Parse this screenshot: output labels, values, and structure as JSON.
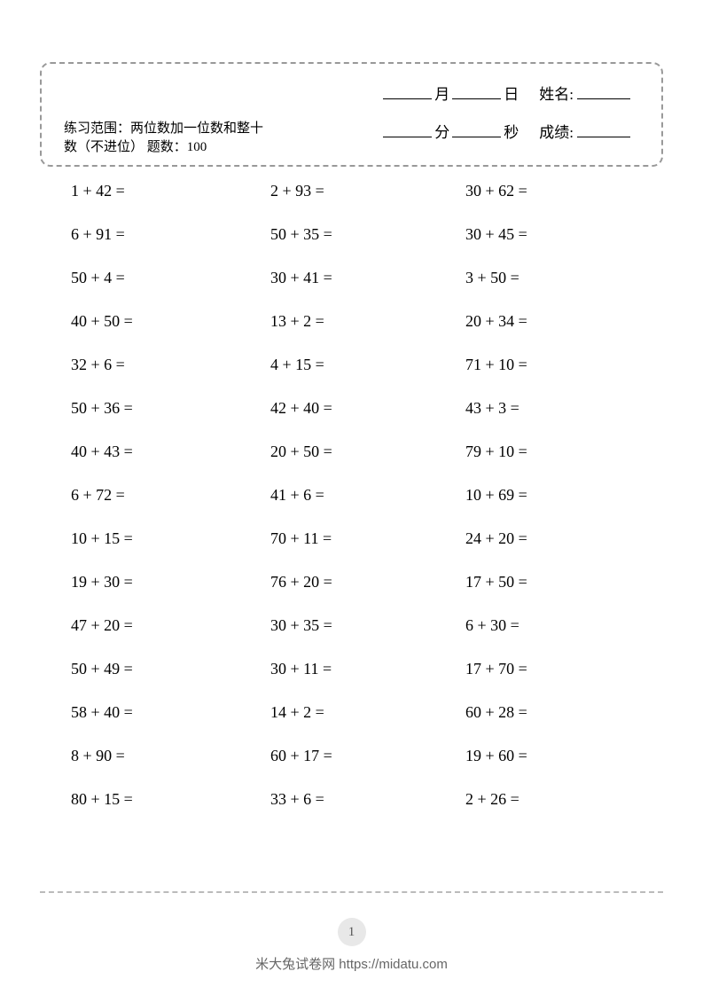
{
  "header": {
    "month_label": "月",
    "day_label": "日",
    "name_label": "姓名:",
    "minute_label": "分",
    "second_label": "秒",
    "score_label": "成绩:",
    "scope_text": "练习范围：两位数加一位数和整十数（不进位）  题数：100"
  },
  "problems": {
    "rows": [
      [
        "1 + 42 =",
        "2 + 93 =",
        "30 + 62 ="
      ],
      [
        "6 + 91 =",
        "50 + 35 =",
        "30 + 45 ="
      ],
      [
        "50 + 4 =",
        "30 + 41 =",
        "3 + 50 ="
      ],
      [
        "40 + 50 =",
        "13 + 2 =",
        "20 + 34 ="
      ],
      [
        "32 + 6 =",
        "4 + 15 =",
        "71 + 10 ="
      ],
      [
        "50 + 36 =",
        "42 + 40 =",
        "43 + 3 ="
      ],
      [
        "40 + 43 =",
        "20 + 50 =",
        "79 + 10 ="
      ],
      [
        "6 + 72 =",
        "41 + 6 =",
        "10 + 69 ="
      ],
      [
        "10 + 15 =",
        "70 + 11 =",
        "24 + 20 ="
      ],
      [
        "19 + 30 =",
        "76 + 20 =",
        "17 + 50 ="
      ],
      [
        "47 + 20 =",
        "30 + 35 =",
        "6 + 30 ="
      ],
      [
        "50 + 49 =",
        "30 + 11 =",
        "17 + 70 ="
      ],
      [
        "58 + 40 =",
        "14 + 2 =",
        "60 + 28 ="
      ],
      [
        "8 + 90 =",
        "60 + 17 =",
        "19 + 60 ="
      ],
      [
        "80 + 15 =",
        "33 + 6 =",
        "2 + 26 ="
      ]
    ]
  },
  "footer": {
    "page_number": "1",
    "attribution": "米大兔试卷网 https://midatu.com"
  }
}
